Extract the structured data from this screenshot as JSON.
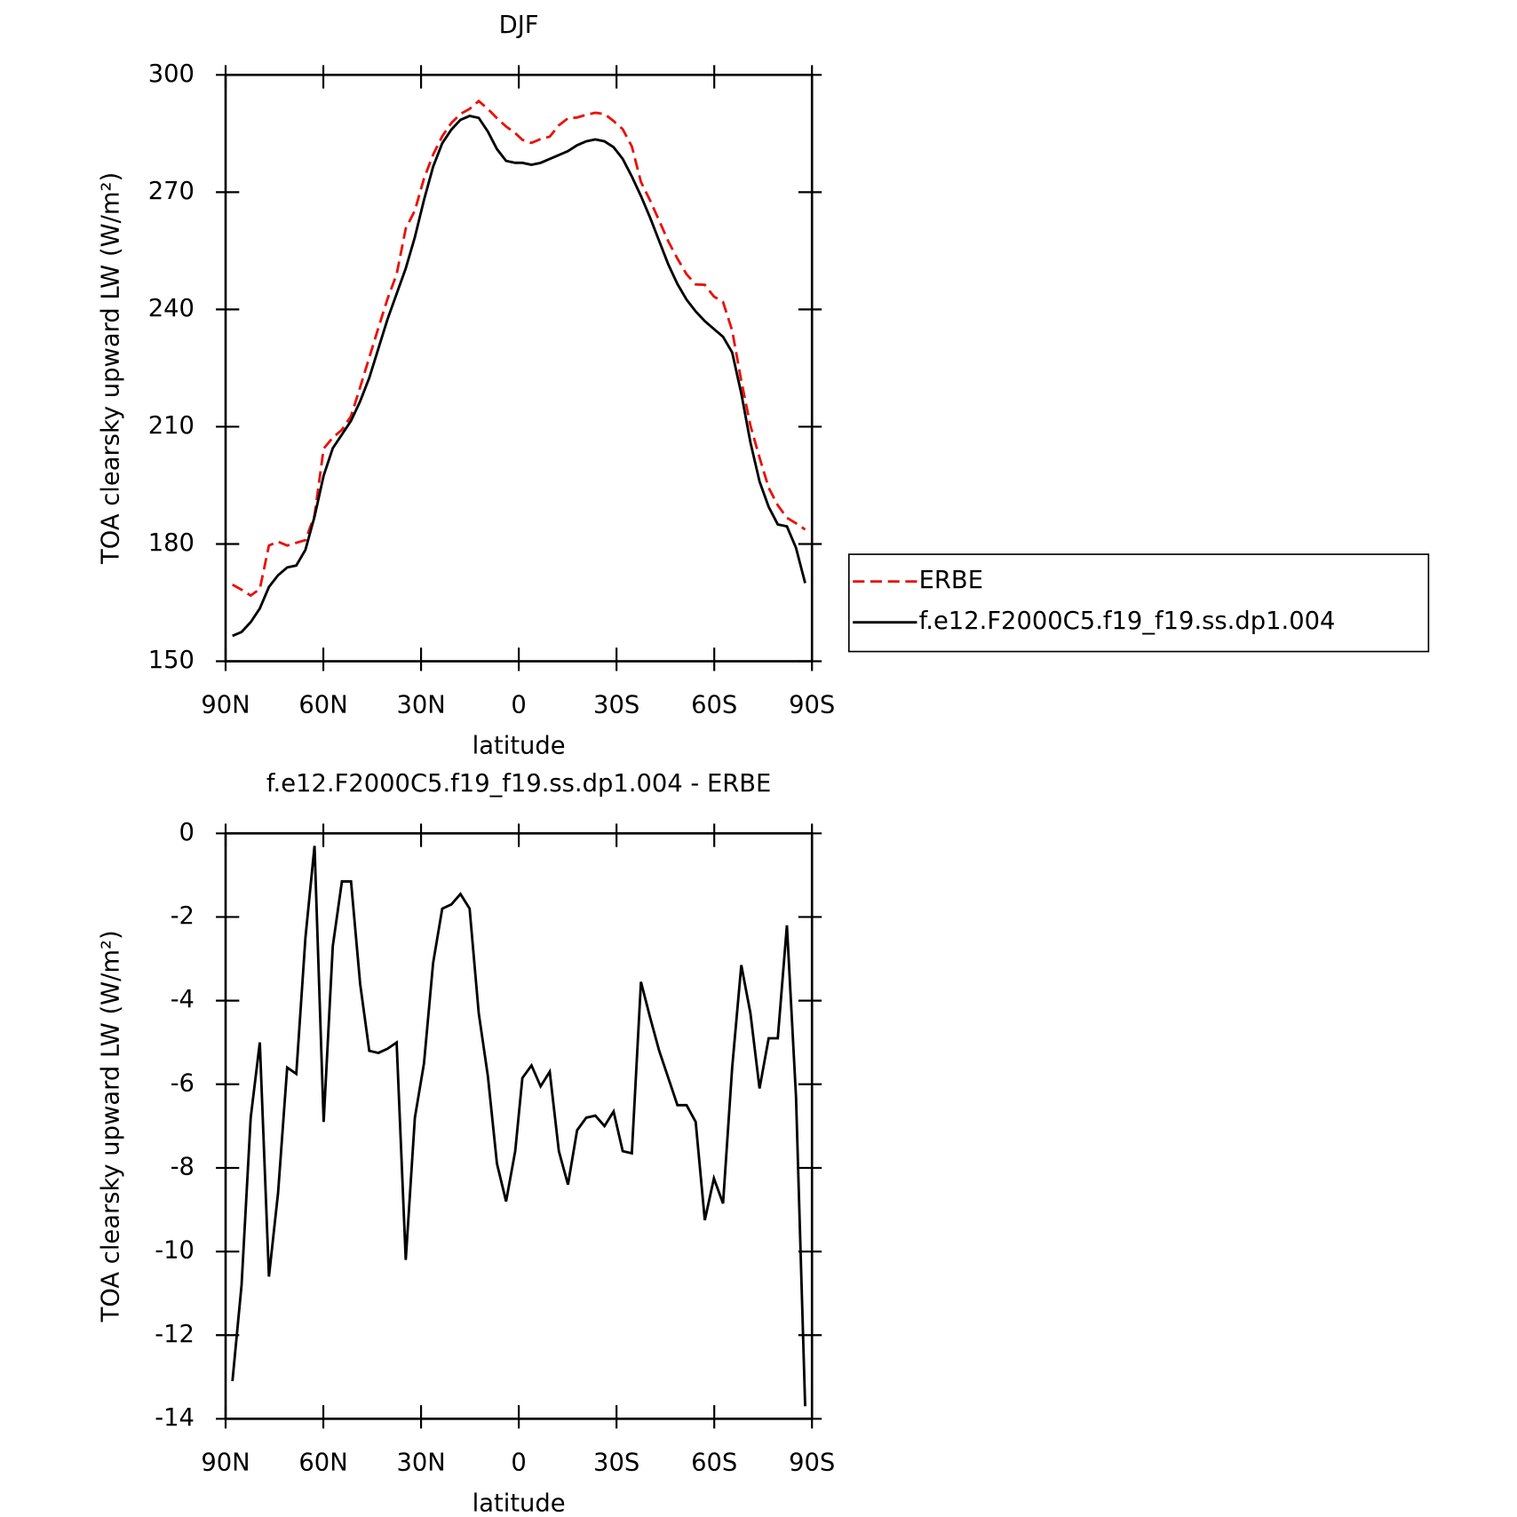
{
  "chart_data": [
    {
      "type": "line",
      "title": "DJF",
      "xlabel": "latitude",
      "ylabel": "TOA clearsky upward LW (W/m²)",
      "xlim": [
        90,
        -90
      ],
      "ylim": [
        150,
        300
      ],
      "yticks": [
        150,
        180,
        210,
        240,
        270,
        300
      ],
      "xticks": [
        {
          "value": 90,
          "label": "90N"
        },
        {
          "value": 60,
          "label": "60N"
        },
        {
          "value": 30,
          "label": "30N"
        },
        0,
        {
          "value": -30,
          "label": "30S"
        },
        {
          "value": -60,
          "label": "60S"
        },
        {
          "value": -90,
          "label": "90S"
        }
      ],
      "legend": "right",
      "x": [
        87.9,
        85.1,
        82.3,
        79.5,
        76.7,
        73.9,
        71.1,
        68.3,
        65.5,
        62.7,
        59.9,
        57.1,
        54.3,
        51.5,
        48.7,
        45.9,
        43.1,
        40.3,
        37.5,
        34.7,
        31.9,
        29.1,
        26.3,
        23.5,
        20.7,
        17.9,
        15.1,
        12.3,
        9.5,
        6.7,
        3.9,
        1.1,
        -1.1,
        -3.9,
        -6.7,
        -9.5,
        -12.3,
        -15.1,
        -17.9,
        -20.7,
        -23.5,
        -26.3,
        -29.1,
        -31.9,
        -34.7,
        -37.5,
        -40.3,
        -43.1,
        -45.9,
        -48.7,
        -51.5,
        -54.3,
        -57.1,
        -59.9,
        -62.7,
        -65.5,
        -68.3,
        -71.1,
        -73.9,
        -76.7,
        -79.5,
        -82.3,
        -85.1,
        -87.9
      ],
      "series": [
        {
          "name": "ERBE",
          "color": "#e8130c",
          "dash": true,
          "values": [
            169.6,
            168.3,
            166.8,
            168.5,
            179.6,
            180.6,
            179.6,
            180.3,
            181,
            187.3,
            204.4,
            207.2,
            209.2,
            212.7,
            220.1,
            227.7,
            235.3,
            242.7,
            249,
            260.7,
            265.3,
            273.5,
            279.6,
            284.3,
            287.7,
            290,
            291.3,
            293.3,
            291.3,
            288.9,
            286.8,
            285.1,
            283.4,
            282.6,
            283.6,
            284.2,
            287.1,
            288.9,
            289.1,
            289.8,
            290.3,
            290,
            288.2,
            286.1,
            281.7,
            272.6,
            267.9,
            262.7,
            257.4,
            253,
            249,
            246.4,
            246.3,
            243.3,
            241.9,
            234.6,
            221.7,
            210.3,
            202.1,
            194.4,
            189.9,
            186.7,
            185.3,
            183.7
          ]
        },
        {
          "name": "f.e12.F2000C5.f19_f19.ss.dp1.004",
          "color": "#000000",
          "dash": false,
          "values": [
            156.5,
            157.5,
            160,
            163.5,
            169,
            172,
            174,
            174.5,
            178.5,
            187,
            197.5,
            204.5,
            208,
            211.5,
            216.5,
            222.5,
            230,
            237.5,
            244,
            250.5,
            258.5,
            268,
            276.5,
            282.5,
            286,
            288.5,
            289.5,
            289,
            285.5,
            281,
            278,
            277.5,
            277.5,
            277,
            277.5,
            278.5,
            279.5,
            280.5,
            282,
            283,
            283.5,
            283,
            281.5,
            278.5,
            274,
            269,
            263.5,
            257.5,
            251.5,
            246.5,
            242.5,
            239.5,
            237,
            235,
            233,
            229,
            218.5,
            206,
            196,
            189.5,
            185,
            184.5,
            179,
            170
          ]
        }
      ]
    },
    {
      "type": "line",
      "title": "f.e12.F2000C5.f19_f19.ss.dp1.004 - ERBE",
      "xlabel": "latitude",
      "ylabel": "TOA clearsky upward LW (W/m²)",
      "xlim": [
        90,
        -90
      ],
      "ylim": [
        -14,
        0
      ],
      "yticks": [
        -14,
        -12,
        -10,
        -8,
        -6,
        -4,
        -2,
        0
      ],
      "xticks": [
        {
          "value": 90,
          "label": "90N"
        },
        {
          "value": 60,
          "label": "60N"
        },
        {
          "value": 30,
          "label": "30N"
        },
        0,
        {
          "value": -30,
          "label": "30S"
        },
        {
          "value": -60,
          "label": "60S"
        },
        {
          "value": -90,
          "label": "90S"
        }
      ],
      "x": [
        87.9,
        85.1,
        82.3,
        79.5,
        76.7,
        73.9,
        71.1,
        68.3,
        65.5,
        62.7,
        59.9,
        57.1,
        54.3,
        51.5,
        48.7,
        45.9,
        43.1,
        40.3,
        37.5,
        34.7,
        31.9,
        29.1,
        26.3,
        23.5,
        20.7,
        17.9,
        15.1,
        12.3,
        9.5,
        6.7,
        3.9,
        1.1,
        -1.1,
        -3.9,
        -6.7,
        -9.5,
        -12.3,
        -15.1,
        -17.9,
        -20.7,
        -23.5,
        -26.3,
        -29.1,
        -31.9,
        -34.7,
        -37.5,
        -40.3,
        -43.1,
        -45.9,
        -48.7,
        -51.5,
        -54.3,
        -57.1,
        -59.9,
        -62.7,
        -65.5,
        -68.3,
        -71.1,
        -73.9,
        -76.7,
        -79.5,
        -82.3,
        -85.1,
        -87.9
      ],
      "series": [
        {
          "color": "#000000",
          "dash": false,
          "values": [
            -13.1,
            -10.8,
            -6.8,
            -5,
            -10.6,
            -8.6,
            -5.6,
            -5.75,
            -2.5,
            -0.3,
            -6.9,
            -2.7,
            -1.15,
            -1.15,
            -3.6,
            -5.2,
            -5.25,
            -5.15,
            -5,
            -10.2,
            -6.8,
            -5.5,
            -3.1,
            -1.8,
            -1.7,
            -1.45,
            -1.8,
            -4.3,
            -5.8,
            -7.9,
            -8.8,
            -7.6,
            -5.85,
            -5.55,
            -6.05,
            -5.7,
            -7.6,
            -8.4,
            -7.1,
            -6.8,
            -6.75,
            -7,
            -6.65,
            -7.6,
            -7.65,
            -3.55,
            -4.4,
            -5.2,
            -5.85,
            -6.5,
            -6.5,
            -6.9,
            -9.25,
            -8.25,
            -8.85,
            -5.6,
            -3.15,
            -4.3,
            -6.1,
            -4.9,
            -4.9,
            -2.2,
            -6.3,
            -13.7
          ]
        }
      ]
    }
  ]
}
